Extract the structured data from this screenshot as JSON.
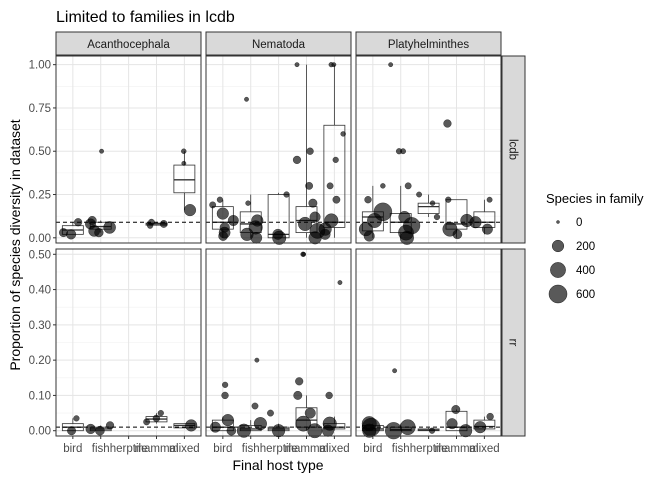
{
  "chart_data": {
    "type": "boxplot",
    "title": "Limited to families in lcdb",
    "xlabel": "Final host type",
    "ylabel": "Proportion of species diversity in dataset",
    "categories": [
      "bird",
      "fish",
      "herptile",
      "mammal",
      "mixed"
    ],
    "columns": [
      "Acanthocephala",
      "Nematoda",
      "Platyhelminthes"
    ],
    "rows": [
      "lcdb",
      "rr"
    ],
    "grid": true,
    "legend": {
      "title": "Species in family",
      "position": "right",
      "sizes": [
        0,
        200,
        400,
        600
      ]
    },
    "reference_lines": {
      "lcdb": 0.09,
      "rr": 0.01
    },
    "panels": [
      {
        "column": "Acanthocephala",
        "row": "lcdb",
        "ylim": [
          -0.03,
          1.05
        ],
        "yticks": [
          0.0,
          0.25,
          0.5,
          0.75,
          1.0
        ],
        "boxes": [
          {
            "category": "bird",
            "q1": 0.02,
            "median": 0.045,
            "q3": 0.07,
            "min": 0.02,
            "max": 0.09
          },
          {
            "category": "fish",
            "q1": 0.05,
            "median": 0.065,
            "q3": 0.09,
            "min": 0.03,
            "max": 0.1
          },
          {
            "category": "mammal",
            "q1": 0.073,
            "median": 0.08,
            "q3": 0.085,
            "min": 0.07,
            "max": 0.09
          },
          {
            "category": "mixed",
            "q1": 0.26,
            "median": 0.335,
            "q3": 0.42,
            "min": 0.16,
            "max": 0.5
          }
        ],
        "points": [
          {
            "category": "bird",
            "y": 0.09,
            "n": 60
          },
          {
            "category": "bird",
            "y": 0.03,
            "n": 80
          },
          {
            "category": "bird",
            "y": 0.02,
            "n": 120
          },
          {
            "category": "fish",
            "y": 0.5,
            "n": 5
          },
          {
            "category": "fish",
            "y": 0.1,
            "n": 80
          },
          {
            "category": "fish",
            "y": 0.08,
            "n": 150
          },
          {
            "category": "fish",
            "y": 0.06,
            "n": 220
          },
          {
            "category": "fish",
            "y": 0.04,
            "n": 180
          },
          {
            "category": "fish",
            "y": 0.03,
            "n": 90
          },
          {
            "category": "mammal",
            "y": 0.09,
            "n": 30
          },
          {
            "category": "mammal",
            "y": 0.08,
            "n": 50
          },
          {
            "category": "mammal",
            "y": 0.07,
            "n": 20
          },
          {
            "category": "mixed",
            "y": 0.5,
            "n": 10
          },
          {
            "category": "mixed",
            "y": 0.43,
            "n": 5
          },
          {
            "category": "mixed",
            "y": 0.16,
            "n": 200
          }
        ]
      },
      {
        "column": "Nematoda",
        "row": "lcdb",
        "ylim": [
          -0.03,
          1.05
        ],
        "boxes": [
          {
            "category": "bird",
            "q1": 0.05,
            "median": 0.09,
            "q3": 0.18,
            "min": 0.0,
            "max": 0.22
          },
          {
            "category": "fish",
            "q1": 0.03,
            "median": 0.08,
            "q3": 0.15,
            "min": 0.0,
            "max": 0.25
          },
          {
            "category": "herptile",
            "q1": 0.0,
            "median": 0.02,
            "q3": 0.25,
            "min": 0.0,
            "max": 0.26
          },
          {
            "category": "mammal",
            "q1": 0.03,
            "median": 0.1,
            "q3": 0.18,
            "min": 0.0,
            "max": 1.0
          },
          {
            "category": "mixed",
            "q1": 0.06,
            "median": 0.09,
            "q3": 0.65,
            "min": 0.0,
            "max": 1.0
          }
        ],
        "points": [
          {
            "category": "bird",
            "y": 0.22,
            "n": 20
          },
          {
            "category": "bird",
            "y": 0.19,
            "n": 30
          },
          {
            "category": "bird",
            "y": 0.14,
            "n": 200
          },
          {
            "category": "bird",
            "y": 0.1,
            "n": 150
          },
          {
            "category": "bird",
            "y": 0.06,
            "n": 120
          },
          {
            "category": "bird",
            "y": 0.03,
            "n": 180
          },
          {
            "category": "bird",
            "y": 0.01,
            "n": 100
          },
          {
            "category": "fish",
            "y": 0.8,
            "n": 5
          },
          {
            "category": "fish",
            "y": 0.2,
            "n": 10
          },
          {
            "category": "fish",
            "y": 0.1,
            "n": 200
          },
          {
            "category": "fish",
            "y": 0.06,
            "n": 300
          },
          {
            "category": "fish",
            "y": 0.02,
            "n": 250
          },
          {
            "category": "fish",
            "y": 0.0,
            "n": 180
          },
          {
            "category": "herptile",
            "y": 0.25,
            "n": 20
          },
          {
            "category": "herptile",
            "y": 0.02,
            "n": 150
          },
          {
            "category": "herptile",
            "y": 0.0,
            "n": 300
          },
          {
            "category": "mammal",
            "y": 1.0,
            "n": 5
          },
          {
            "category": "mammal",
            "y": 0.5,
            "n": 40
          },
          {
            "category": "mammal",
            "y": 0.45,
            "n": 60
          },
          {
            "category": "mammal",
            "y": 0.3,
            "n": 50
          },
          {
            "category": "mammal",
            "y": 0.2,
            "n": 80
          },
          {
            "category": "mammal",
            "y": 0.12,
            "n": 150
          },
          {
            "category": "mammal",
            "y": 0.08,
            "n": 300
          },
          {
            "category": "mammal",
            "y": 0.04,
            "n": 400
          },
          {
            "category": "mammal",
            "y": 0.0,
            "n": 250
          },
          {
            "category": "mixed",
            "y": 1.0,
            "n": 5
          },
          {
            "category": "mixed",
            "y": 1.0,
            "n": 8
          },
          {
            "category": "mixed",
            "y": 0.6,
            "n": 10
          },
          {
            "category": "mixed",
            "y": 0.45,
            "n": 20
          },
          {
            "category": "mixed",
            "y": 0.3,
            "n": 30
          },
          {
            "category": "mixed",
            "y": 0.22,
            "n": 50
          },
          {
            "category": "mixed",
            "y": 0.1,
            "n": 300
          },
          {
            "category": "mixed",
            "y": 0.05,
            "n": 250
          },
          {
            "category": "mixed",
            "y": 0.02,
            "n": 150
          }
        ]
      },
      {
        "column": "Platyhelminthes",
        "row": "lcdb",
        "ylim": [
          -0.03,
          1.05
        ],
        "boxes": [
          {
            "category": "bird",
            "q1": 0.04,
            "median": 0.12,
            "q3": 0.15,
            "min": 0.0,
            "max": 0.3
          },
          {
            "category": "fish",
            "q1": 0.03,
            "median": 0.09,
            "q3": 0.14,
            "min": 0.0,
            "max": 0.3
          },
          {
            "category": "herptile",
            "q1": 0.14,
            "median": 0.18,
            "q3": 0.2,
            "min": 0.12,
            "max": 0.25
          },
          {
            "category": "mammal",
            "q1": 0.05,
            "median": 0.08,
            "q3": 0.22,
            "min": 0.0,
            "max": 0.22
          },
          {
            "category": "mixed",
            "q1": 0.06,
            "median": 0.09,
            "q3": 0.15,
            "min": 0.02,
            "max": 0.22
          }
        ],
        "points": [
          {
            "category": "bird",
            "y": 0.3,
            "n": 10
          },
          {
            "category": "bird",
            "y": 0.22,
            "n": 40
          },
          {
            "category": "bird",
            "y": 0.15,
            "n": 600
          },
          {
            "category": "bird",
            "y": 0.1,
            "n": 350
          },
          {
            "category": "bird",
            "y": 0.05,
            "n": 300
          },
          {
            "category": "bird",
            "y": 0.01,
            "n": 150
          },
          {
            "category": "fish",
            "y": 1.0,
            "n": 5
          },
          {
            "category": "fish",
            "y": 0.5,
            "n": 20
          },
          {
            "category": "fish",
            "y": 0.5,
            "n": 15
          },
          {
            "category": "fish",
            "y": 0.3,
            "n": 30
          },
          {
            "category": "fish",
            "y": 0.12,
            "n": 200
          },
          {
            "category": "fish",
            "y": 0.07,
            "n": 500
          },
          {
            "category": "fish",
            "y": 0.03,
            "n": 400
          },
          {
            "category": "fish",
            "y": 0.0,
            "n": 300
          },
          {
            "category": "herptile",
            "y": 0.25,
            "n": 15
          },
          {
            "category": "herptile",
            "y": 0.2,
            "n": 10
          },
          {
            "category": "herptile",
            "y": 0.12,
            "n": 20
          },
          {
            "category": "mammal",
            "y": 0.66,
            "n": 60
          },
          {
            "category": "mammal",
            "y": 0.22,
            "n": 20
          },
          {
            "category": "mammal",
            "y": 0.1,
            "n": 250
          },
          {
            "category": "mammal",
            "y": 0.05,
            "n": 350
          },
          {
            "category": "mammal",
            "y": 0.02,
            "n": 100
          },
          {
            "category": "mixed",
            "y": 0.22,
            "n": 15
          },
          {
            "category": "mixed",
            "y": 0.09,
            "n": 200
          },
          {
            "category": "mixed",
            "y": 0.05,
            "n": 150
          }
        ]
      },
      {
        "column": "Acanthocephala",
        "row": "rr",
        "ylim": [
          -0.015,
          0.515
        ],
        "yticks": [
          0.0,
          0.1,
          0.2,
          0.3,
          0.4,
          0.5
        ],
        "boxes": [
          {
            "category": "bird",
            "q1": 0.0,
            "median": 0.01,
            "q3": 0.02,
            "min": 0.0,
            "max": 0.035
          },
          {
            "category": "fish",
            "q1": 0.0,
            "median": 0.005,
            "q3": 0.01,
            "min": 0.0,
            "max": 0.015
          },
          {
            "category": "mammal",
            "q1": 0.025,
            "median": 0.033,
            "q3": 0.04,
            "min": 0.02,
            "max": 0.05
          },
          {
            "category": "mixed",
            "q1": 0.008,
            "median": 0.015,
            "q3": 0.02,
            "min": 0.008,
            "max": 0.02
          }
        ],
        "points": [
          {
            "category": "bird",
            "y": 0.035,
            "n": 20
          },
          {
            "category": "bird",
            "y": 0.0,
            "n": 80
          },
          {
            "category": "fish",
            "y": 0.015,
            "n": 60
          },
          {
            "category": "fish",
            "y": 0.005,
            "n": 120
          },
          {
            "category": "fish",
            "y": 0.0,
            "n": 100
          },
          {
            "category": "mammal",
            "y": 0.05,
            "n": 20
          },
          {
            "category": "mammal",
            "y": 0.035,
            "n": 40
          },
          {
            "category": "mammal",
            "y": 0.025,
            "n": 30
          },
          {
            "category": "mixed",
            "y": 0.015,
            "n": 200
          }
        ]
      },
      {
        "column": "Nematoda",
        "row": "rr",
        "ylim": [
          -0.015,
          0.515
        ],
        "boxes": [
          {
            "category": "bird",
            "q1": 0.0,
            "median": 0.01,
            "q3": 0.03,
            "min": 0.0,
            "max": 0.04
          },
          {
            "category": "fish",
            "q1": 0.0,
            "median": 0.005,
            "q3": 0.015,
            "min": 0.0,
            "max": 0.03
          },
          {
            "category": "herptile",
            "q1": 0.0,
            "median": 0.005,
            "q3": 0.01,
            "min": 0.0,
            "max": 0.02
          },
          {
            "category": "mammal",
            "q1": 0.01,
            "median": 0.03,
            "q3": 0.065,
            "min": 0.0,
            "max": 0.1
          },
          {
            "category": "mixed",
            "q1": 0.005,
            "median": 0.01,
            "q3": 0.02,
            "min": 0.0,
            "max": 0.04
          }
        ],
        "points": [
          {
            "category": "bird",
            "y": 0.13,
            "n": 20
          },
          {
            "category": "bird",
            "y": 0.1,
            "n": 40
          },
          {
            "category": "bird",
            "y": 0.03,
            "n": 200
          },
          {
            "category": "bird",
            "y": 0.01,
            "n": 150
          },
          {
            "category": "bird",
            "y": 0.0,
            "n": 100
          },
          {
            "category": "fish",
            "y": 0.2,
            "n": 5
          },
          {
            "category": "fish",
            "y": 0.07,
            "n": 30
          },
          {
            "category": "fish",
            "y": 0.02,
            "n": 250
          },
          {
            "category": "fish",
            "y": 0.0,
            "n": 300
          },
          {
            "category": "herptile",
            "y": 0.05,
            "n": 30
          },
          {
            "category": "herptile",
            "y": 0.0,
            "n": 250
          },
          {
            "category": "mammal",
            "y": 0.5,
            "n": 5
          },
          {
            "category": "mammal",
            "y": 0.5,
            "n": 8
          },
          {
            "category": "mammal",
            "y": 0.14,
            "n": 60
          },
          {
            "category": "mammal",
            "y": 0.1,
            "n": 80
          },
          {
            "category": "mammal",
            "y": 0.05,
            "n": 150
          },
          {
            "category": "mammal",
            "y": 0.02,
            "n": 400
          },
          {
            "category": "mammal",
            "y": 0.0,
            "n": 350
          },
          {
            "category": "mixed",
            "y": 0.42,
            "n": 5
          },
          {
            "category": "mixed",
            "y": 0.1,
            "n": 40
          },
          {
            "category": "mixed",
            "y": 0.02,
            "n": 300
          },
          {
            "category": "mixed",
            "y": 0.0,
            "n": 200
          }
        ]
      },
      {
        "column": "Platyhelminthes",
        "row": "rr",
        "ylim": [
          -0.015,
          0.515
        ],
        "boxes": [
          {
            "category": "bird",
            "q1": 0.0,
            "median": 0.005,
            "q3": 0.015,
            "min": 0.0,
            "max": 0.02
          },
          {
            "category": "fish",
            "q1": 0.0,
            "median": 0.003,
            "q3": 0.01,
            "min": 0.0,
            "max": 0.02
          },
          {
            "category": "herptile",
            "q1": 0.0,
            "median": 0.002,
            "q3": 0.005,
            "min": 0.0,
            "max": 0.008
          },
          {
            "category": "mammal",
            "q1": 0.0,
            "median": 0.01,
            "q3": 0.055,
            "min": 0.0,
            "max": 0.06
          },
          {
            "category": "mixed",
            "q1": 0.005,
            "median": 0.012,
            "q3": 0.03,
            "min": 0.0,
            "max": 0.04
          }
        ],
        "points": [
          {
            "category": "bird",
            "y": 0.02,
            "n": 350
          },
          {
            "category": "bird",
            "y": 0.01,
            "n": 600
          },
          {
            "category": "bird",
            "y": 0.0,
            "n": 300
          },
          {
            "category": "fish",
            "y": 0.17,
            "n": 5
          },
          {
            "category": "fish",
            "y": 0.01,
            "n": 400
          },
          {
            "category": "fish",
            "y": 0.0,
            "n": 500
          },
          {
            "category": "herptile",
            "y": 0.0,
            "n": 20
          },
          {
            "category": "mammal",
            "y": 0.06,
            "n": 80
          },
          {
            "category": "mammal",
            "y": 0.02,
            "n": 150
          },
          {
            "category": "mammal",
            "y": 0.0,
            "n": 250
          },
          {
            "category": "mixed",
            "y": 0.04,
            "n": 40
          },
          {
            "category": "mixed",
            "y": 0.01,
            "n": 200
          }
        ]
      }
    ]
  }
}
